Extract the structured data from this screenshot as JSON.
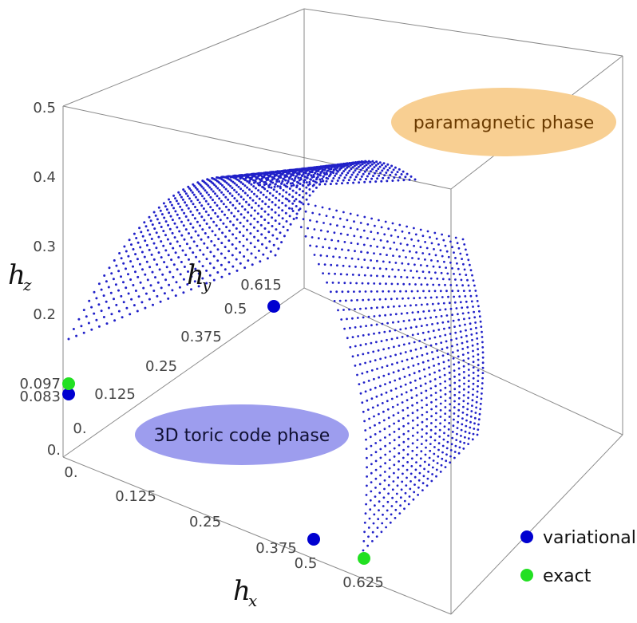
{
  "chart_data": {
    "type": "scatter3d",
    "axes": {
      "x": {
        "label": "h",
        "subscript": "x",
        "ticks": [
          "0.",
          "0.125",
          "0.25",
          "0.375",
          "0.5",
          "0.625"
        ],
        "range": [
          0,
          0.625
        ]
      },
      "y": {
        "label": "h",
        "subscript": "y",
        "ticks": [
          "0.",
          "0.125",
          "0.25",
          "0.375",
          "0.5",
          "0.615"
        ],
        "range": [
          0,
          0.615
        ]
      },
      "z": {
        "label": "h",
        "subscript": "z",
        "ticks": [
          "0.",
          "0.083",
          "0.097",
          "0.2",
          "0.3",
          "0.4",
          "0.5"
        ],
        "range": [
          0,
          0.5
        ]
      }
    },
    "surface": {
      "description_series": "variational phase boundary",
      "color": "#2020c8",
      "hx_at_base": 0.5,
      "hz_at_base": 0.097,
      "max_hz": 0.49
    },
    "markers": [
      {
        "series": "variational",
        "hx": 0.422,
        "hy": 0,
        "hz": 0,
        "color": "#0000d0"
      },
      {
        "series": "exact",
        "hx": 0.5,
        "hy": 0,
        "hz": 0,
        "color": "#22e022"
      },
      {
        "series": "variational",
        "hx": 0,
        "hy": 0,
        "hz": 0.083,
        "color": "#0000d0"
      },
      {
        "series": "exact",
        "hx": 0,
        "hy": 0,
        "hz": 0.097,
        "color": "#22e022"
      },
      {
        "series": "variational",
        "hx": 0,
        "hy": 0.5,
        "hz": 0,
        "color": "#0000d0"
      }
    ],
    "legend": {
      "position": "bottom-right",
      "items": [
        {
          "label": "variational",
          "color": "#0000d0"
        },
        {
          "label": "exact",
          "color": "#22e022"
        }
      ]
    },
    "phase_labels": [
      {
        "text": "paramagnetic phase",
        "fill": "#f8cf92",
        "text_color": "#6a3a00"
      },
      {
        "text": "3D toric code phase",
        "fill": "#9d9dee",
        "text_color": "#111133"
      }
    ]
  }
}
